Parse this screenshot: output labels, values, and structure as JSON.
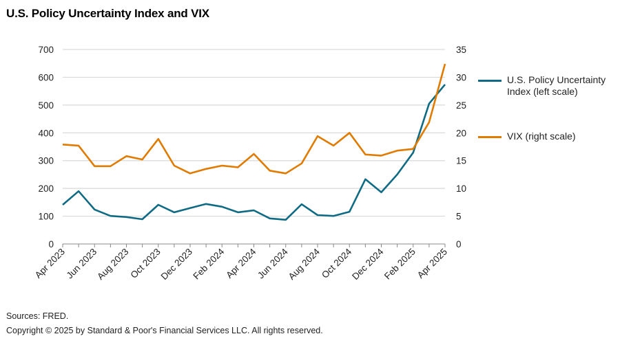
{
  "title": "U.S. Policy Uncertainty Index and VIX",
  "chart_data": {
    "type": "line",
    "title": "U.S. Policy Uncertainty Index and VIX",
    "x": [
      "Apr 2023",
      "May 2023",
      "Jun 2023",
      "Jul 2023",
      "Aug 2023",
      "Sep 2023",
      "Oct 2023",
      "Nov 2023",
      "Dec 2023",
      "Jan 2024",
      "Feb 2024",
      "Mar 2024",
      "Apr 2024",
      "May 2024",
      "Jun 2024",
      "Jul 2024",
      "Aug 2024",
      "Sep 2024",
      "Oct 2024",
      "Nov 2024",
      "Dec 2024",
      "Jan 2025",
      "Feb 2025",
      "Mar 2025",
      "Apr 2025"
    ],
    "x_tick_labels": [
      "Apr 2023",
      "Jun 2023",
      "Aug 2023",
      "Oct 2023",
      "Dec 2023",
      "Feb 2024",
      "Apr 2024",
      "Jun 2024",
      "Aug 2024",
      "Oct 2024",
      "Dec 2024",
      "Feb 2025",
      "Apr 2025"
    ],
    "y_left": {
      "range": [
        0,
        700
      ],
      "ticks": [
        "0",
        "100",
        "200",
        "300",
        "400",
        "500",
        "600",
        "700"
      ]
    },
    "y_right": {
      "range": [
        0,
        35
      ],
      "ticks": [
        "0",
        "5",
        "10",
        "15",
        "20",
        "25",
        "30",
        "35"
      ]
    },
    "grid": true,
    "legend_position": "right",
    "series": [
      {
        "name": "U.S. Policy Uncertainty Index (left scale)",
        "legend_lines": [
          "U.S. Policy Uncertainty",
          "Index (left scale)"
        ],
        "axis": "left",
        "color": "#0f6b84",
        "values": [
          141,
          190,
          124,
          101,
          97,
          89,
          141,
          114,
          129,
          144,
          134,
          114,
          121,
          92,
          87,
          143,
          104,
          101,
          116,
          233,
          186,
          250,
          329,
          505,
          574
        ]
      },
      {
        "name": "VIX (right scale)",
        "legend_lines": [
          "VIX (right scale)"
        ],
        "axis": "right",
        "color": "#e07b00",
        "values": [
          17.9,
          17.7,
          14.0,
          14.0,
          15.8,
          15.2,
          18.9,
          14.1,
          12.7,
          13.5,
          14.1,
          13.8,
          16.2,
          13.2,
          12.7,
          14.5,
          19.4,
          17.7,
          20.0,
          16.1,
          15.9,
          16.8,
          17.1,
          21.9,
          32.4
        ]
      }
    ]
  },
  "footer": {
    "sources": "Sources: FRED.",
    "copyright": "Copyright © 2025 by Standard & Poor's Financial Services LLC. All rights reserved."
  }
}
